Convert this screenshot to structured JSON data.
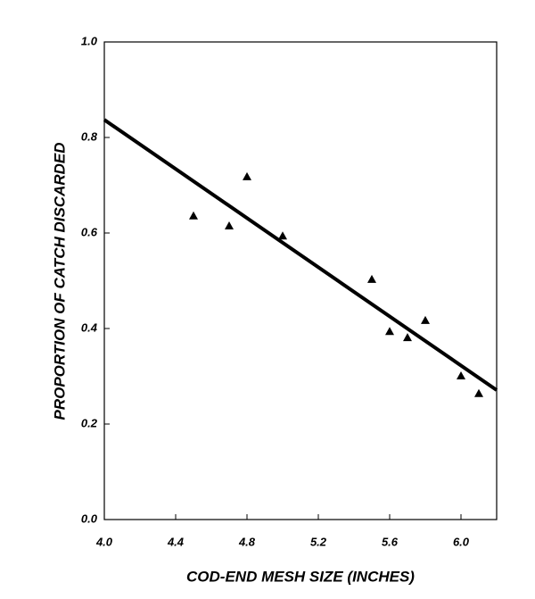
{
  "chart_data": {
    "type": "scatter",
    "x_label": "COD-END MESH SIZE (INCHES)",
    "y_label": "PROPORTION OF CATCH DISCARDED",
    "xlim": [
      4.0,
      6.2
    ],
    "xticks": [
      {
        "value": 4,
        "label": "4.0"
      },
      4.4,
      4.8,
      5.2,
      5.6,
      {
        "value": 6,
        "label": "6.0"
      }
    ],
    "ylim": [
      0,
      1
    ],
    "yticks": [
      {
        "value": 0,
        "label": "0.0"
      },
      0.2,
      0.4,
      0.6,
      0.8,
      {
        "value": 1,
        "label": "1.0"
      }
    ],
    "series": [
      {
        "type": "scatter",
        "color": "#000000",
        "x": [
          4.5,
          4.7,
          4.8,
          5.0,
          5.5,
          5.6,
          5.7,
          5.8,
          6.0,
          6.1
        ],
        "values": [
          0.636,
          0.615,
          0.718,
          0.594,
          0.503,
          0.394,
          0.381,
          0.417,
          0.301,
          0.264
        ]
      },
      {
        "type": "line",
        "color": "#000000",
        "x": [
          4.0,
          6.2
        ],
        "values": [
          0.837,
          0.271
        ]
      }
    ]
  }
}
